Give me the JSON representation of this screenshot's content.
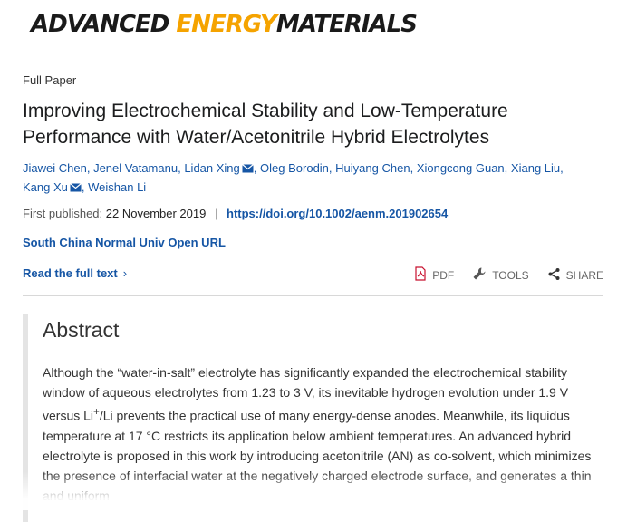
{
  "journal": {
    "name_part1": "ADVANCED ",
    "name_part2": "ENERGY",
    "name_part3": "MATERIALS"
  },
  "article_type": "Full Paper",
  "title": "Improving Electrochemical Stability and Low-Temperature Performance with Water/Acetonitrile Hybrid Electrolytes",
  "authors": [
    {
      "name": "Jiawei Chen",
      "mail": false
    },
    {
      "name": "Jenel Vatamanu",
      "mail": false
    },
    {
      "name": "Lidan Xing",
      "mail": true
    },
    {
      "name": "Oleg Borodin",
      "mail": false
    },
    {
      "name": "Huiyang Chen",
      "mail": false
    },
    {
      "name": "Xiongcong Guan",
      "mail": false
    },
    {
      "name": "Xiang Liu",
      "mail": false
    },
    {
      "name": "Kang Xu",
      "mail": true
    },
    {
      "name": "Weishan Li",
      "mail": false
    }
  ],
  "publication": {
    "label": "First published:",
    "date": "22 November 2019",
    "separator": "|",
    "doi": "https://doi.org/10.1002/aenm.201902654"
  },
  "open_url": "South China Normal Univ Open URL",
  "read_full_text": "Read the full text",
  "tools": {
    "pdf": "PDF",
    "tools": "TOOLS",
    "share": "SHARE"
  },
  "colors": {
    "link": "#1656a5",
    "accent": "#f5a300"
  },
  "abstract": {
    "heading": "Abstract",
    "text_before": "Although the “water-in-salt” electrolyte has significantly expanded the electrochemical stability window of aqueous electrolytes from 1.23 to 3 V, its inevitable hydrogen evolution under 1.9 V versus Li",
    "superscript": "+",
    "text_after": "/Li prevents the practical use of many energy-dense anodes. Meanwhile, its liquidus temperature at 17 °C restricts its application below ambient temperatures. An advanced hybrid electrolyte is proposed in this work by introducing acetonitrile (AN) as co-solvent, which minimizes the presence of interfacial water at the negatively charged electrode surface, and generates a thin and uniform"
  }
}
